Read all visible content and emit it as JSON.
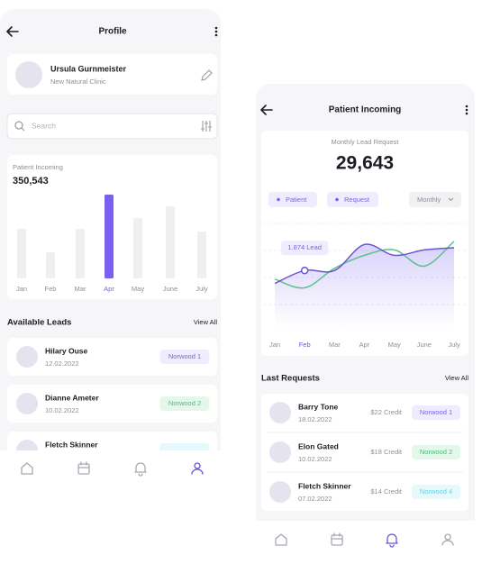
{
  "profile_screen": {
    "title": "Profile",
    "user": {
      "name": "Ursula Gurnmeister",
      "clinic": "New Natural Clinic"
    },
    "search_placeholder": "Search",
    "patient_card": {
      "label": "Patient Incoming",
      "total": "350,543",
      "categories": [
        "Jan",
        "Feb",
        "Mar",
        "Apr",
        "May",
        "June",
        "July"
      ],
      "values": [
        55,
        29,
        55,
        93,
        67,
        80,
        52
      ],
      "ylim": [
        0,
        100
      ],
      "color": "#efeff1",
      "highlight_color": "#7a5ff0"
    },
    "leads": {
      "title": "Available Leads",
      "view_all": "View All",
      "items": [
        {
          "name": "Hilary Ouse",
          "date": "12.02.2022",
          "tag": "Norwood 1"
        },
        {
          "name": "Dianne Ameter",
          "date": "10.02.2022",
          "tag": "Norwood 2"
        },
        {
          "name": "Fletch Skinner"
        }
      ]
    }
  },
  "incoming_screen": {
    "title": "Patient Incoming",
    "card": {
      "label": "Monthly Lead Request",
      "total": "29,643",
      "period": "Monthly",
      "tooltip": "1.874 Lead",
      "chart_data": {
        "type": "line",
        "categories": [
          "Jan",
          "Feb",
          "Mar",
          "Apr",
          "May",
          "June",
          "July"
        ],
        "ylim": [
          0,
          100
        ],
        "series": [
          {
            "name": "Patient",
            "color": "#5cc28d",
            "values": [
              46,
              38,
              56,
              68,
              73,
              58,
              81
            ]
          },
          {
            "name": "Request",
            "color": "#6c54d8",
            "values": [
              42,
              54,
              54,
              78,
              68,
              73,
              75
            ]
          }
        ]
      }
    },
    "requests": {
      "title": "Last Requests",
      "view_all": "View All",
      "items": [
        {
          "name": "Barry Tone",
          "date": "18.02.2022",
          "credit": "$22 Credit",
          "tag": "Norwood 1"
        },
        {
          "name": "Elon Gated",
          "date": "10.02.2022",
          "credit": "$18 Credit",
          "tag": "Norwood 2"
        },
        {
          "name": "Fletch Skinner",
          "date": "07.02.2022",
          "credit": "$14 Credit",
          "tag": "Norwood 4"
        }
      ]
    }
  }
}
